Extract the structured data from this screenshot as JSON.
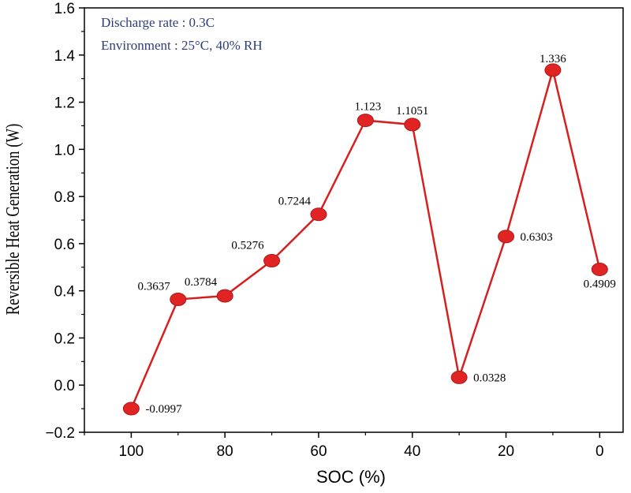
{
  "chart_data": {
    "type": "line",
    "xlabel": "SOC (%)",
    "ylabel": "Reversible Heat Generation (W)",
    "xlim": [
      110,
      -5
    ],
    "ylim": [
      -0.2,
      1.6
    ],
    "x_ticks": [
      100,
      80,
      60,
      40,
      20,
      0
    ],
    "y_ticks": [
      -0.2,
      0.0,
      0.2,
      0.4,
      0.6,
      0.8,
      1.0,
      1.2,
      1.4,
      1.6
    ],
    "x_tick_labels": [
      "100",
      "80",
      "60",
      "40",
      "20",
      "0"
    ],
    "y_tick_labels": [
      "−0.2",
      "0.0",
      "0.2",
      "0.4",
      "0.6",
      "0.8",
      "1.0",
      "1.2",
      "1.4",
      "1.6"
    ],
    "x_axis_reversed": true,
    "grid": false,
    "series": [
      {
        "color": "#d62020",
        "x": [
          100,
          90,
          80,
          70,
          60,
          50,
          40,
          30,
          20,
          10,
          0
        ],
        "y": [
          -0.0997,
          0.3637,
          0.3784,
          0.5276,
          0.7244,
          1.123,
          1.1051,
          0.0328,
          0.6303,
          1.336,
          0.4909
        ],
        "labels": [
          "-0.0997",
          "0.3637",
          "0.3784",
          "0.5276",
          "0.7244",
          "1.123",
          "1.1051",
          "0.0328",
          "0.6303",
          "1.336",
          "0.4909"
        ]
      }
    ],
    "annotations": [
      "Discharge rate : 0.3C",
      "Environment : 25°C, 40% RH"
    ],
    "annotation_color": "#2e3d7a"
  }
}
